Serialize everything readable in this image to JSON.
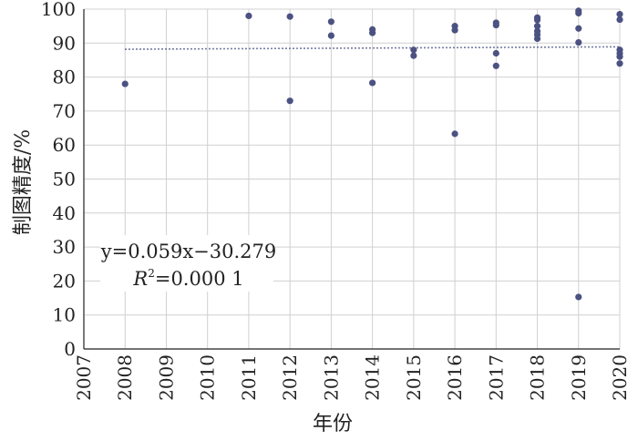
{
  "chart_data": {
    "type": "scatter",
    "title": "",
    "xlabel": "年份",
    "ylabel": "制图精度/%",
    "xlim": [
      2007,
      2020
    ],
    "ylim": [
      0,
      100
    ],
    "x_ticks": [
      "2007",
      "2008",
      "2009",
      "2010",
      "2011",
      "2012",
      "2013",
      "2014",
      "2015",
      "2016",
      "2017",
      "2018",
      "2019",
      "2020"
    ],
    "y_ticks": [
      "0",
      "10",
      "20",
      "30",
      "40",
      "50",
      "60",
      "70",
      "80",
      "90",
      "100"
    ],
    "grid": true,
    "series": [
      {
        "points": [
          {
            "x": 2008,
            "y": 78.0
          },
          {
            "x": 2011,
            "y": 98.0
          },
          {
            "x": 2012,
            "y": 97.8
          },
          {
            "x": 2012,
            "y": 73.0
          },
          {
            "x": 2013,
            "y": 96.3
          },
          {
            "x": 2013,
            "y": 92.2
          },
          {
            "x": 2014,
            "y": 94.0
          },
          {
            "x": 2014,
            "y": 93.0
          },
          {
            "x": 2014,
            "y": 78.3
          },
          {
            "x": 2015,
            "y": 88.0
          },
          {
            "x": 2015,
            "y": 86.3
          },
          {
            "x": 2016,
            "y": 95.0
          },
          {
            "x": 2016,
            "y": 93.8
          },
          {
            "x": 2016,
            "y": 63.3
          },
          {
            "x": 2017,
            "y": 96.0
          },
          {
            "x": 2017,
            "y": 95.3
          },
          {
            "x": 2017,
            "y": 87.0
          },
          {
            "x": 2017,
            "y": 83.3
          },
          {
            "x": 2018,
            "y": 97.5
          },
          {
            "x": 2018,
            "y": 96.8
          },
          {
            "x": 2018,
            "y": 95.0
          },
          {
            "x": 2018,
            "y": 93.5
          },
          {
            "x": 2018,
            "y": 92.5
          },
          {
            "x": 2018,
            "y": 91.3
          },
          {
            "x": 2019,
            "y": 99.5
          },
          {
            "x": 2019,
            "y": 98.8
          },
          {
            "x": 2019,
            "y": 94.3
          },
          {
            "x": 2019,
            "y": 90.2
          },
          {
            "x": 2019,
            "y": 15.3
          },
          {
            "x": 2020,
            "y": 98.5
          },
          {
            "x": 2020,
            "y": 96.9
          },
          {
            "x": 2020,
            "y": 88.0
          },
          {
            "x": 2020,
            "y": 87.0
          },
          {
            "x": 2020,
            "y": 86.0
          },
          {
            "x": 2020,
            "y": 84.0
          }
        ]
      }
    ],
    "trendline": {
      "style": "dotted",
      "slope": 0.059,
      "intercept": -30.279,
      "x_range": [
        2008,
        2020
      ],
      "equation_label": "y=0.059x−30.279",
      "r2_prefix": "R",
      "r2_superscript": "2",
      "r2_value": "=0.000 1"
    },
    "colors": {
      "point": "#4b5282",
      "trendline": "#4b5282",
      "grid": "#d0d0d0",
      "axis": "#222222"
    }
  }
}
